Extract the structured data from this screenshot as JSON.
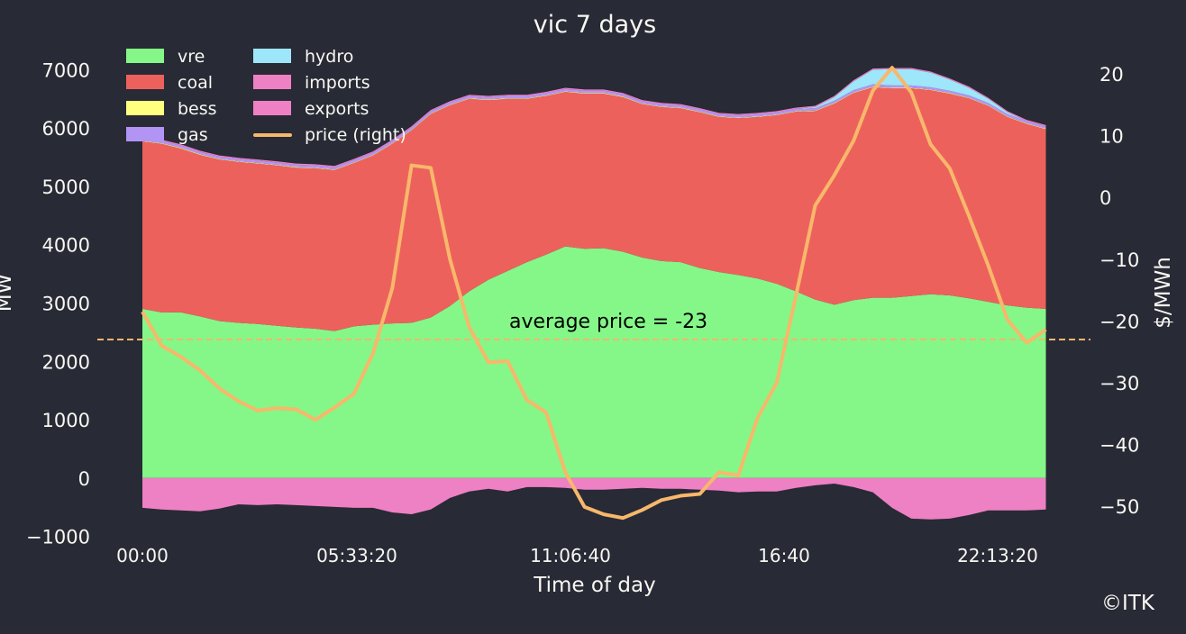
{
  "chart_data": {
    "type": "area",
    "title": "vic 7 days",
    "xlabel": "Time of day",
    "ylabel": "MW",
    "ylabel_right": "$/MWh",
    "x_step_minutes": 30,
    "x_ticks": [
      "00:00",
      "05:33:20",
      "11:06:40",
      "16:40",
      "22:13:20"
    ],
    "y_ticks": [
      "−1000",
      "0",
      "1000",
      "2000",
      "3000",
      "4000",
      "5000",
      "6000",
      "7000"
    ],
    "y_right_ticks": [
      "−50",
      "−40",
      "−30",
      "−20",
      "−10",
      "0",
      "10",
      "20"
    ],
    "ylim": [
      -1300,
      7500
    ],
    "ylim_right": [
      -57.7,
      25.4
    ],
    "grid": false,
    "legend_position": "top-left",
    "colors": {
      "background": "#282a36",
      "text": "#f8f8f2",
      "vre": "#84f788",
      "coal": "#ed615c",
      "bess": "#ffff80",
      "gas": "#b294f5",
      "hydro": "#9ee6fa",
      "imports": "#ee80c4",
      "exports": "#ee80c4",
      "price": "#f7b86b"
    },
    "series": [
      {
        "name": "vre",
        "values": [
          2900,
          2840,
          2840,
          2770,
          2690,
          2660,
          2640,
          2610,
          2580,
          2560,
          2520,
          2600,
          2630,
          2650,
          2660,
          2750,
          2950,
          3200,
          3400,
          3550,
          3700,
          3830,
          3970,
          3930,
          3940,
          3880,
          3780,
          3720,
          3700,
          3600,
          3530,
          3480,
          3420,
          3330,
          3200,
          3060,
          2970,
          3050,
          3090,
          3090,
          3120,
          3150,
          3130,
          3080,
          3020,
          2960,
          2920,
          2900
        ]
      },
      {
        "name": "coal",
        "values": [
          2870,
          2890,
          2810,
          2770,
          2770,
          2760,
          2750,
          2750,
          2740,
          2750,
          2760,
          2800,
          2900,
          3080,
          3300,
          3490,
          3440,
          3300,
          3080,
          2950,
          2800,
          2720,
          2650,
          2660,
          2650,
          2650,
          2630,
          2640,
          2640,
          2670,
          2660,
          2690,
          2770,
          2890,
          3080,
          3230,
          3450,
          3550,
          3610,
          3590,
          3560,
          3500,
          3460,
          3430,
          3360,
          3230,
          3150,
          3080
        ]
      },
      {
        "name": "bess",
        "values": [
          10,
          10,
          10,
          10,
          10,
          10,
          10,
          10,
          10,
          10,
          10,
          10,
          10,
          10,
          10,
          10,
          10,
          10,
          10,
          10,
          10,
          10,
          10,
          10,
          10,
          10,
          10,
          10,
          10,
          10,
          10,
          10,
          10,
          10,
          10,
          10,
          10,
          10,
          10,
          10,
          10,
          10,
          10,
          10,
          10,
          10,
          10,
          10
        ]
      },
      {
        "name": "gas",
        "values": [
          40,
          40,
          40,
          40,
          40,
          40,
          40,
          40,
          40,
          40,
          40,
          40,
          40,
          40,
          40,
          40,
          40,
          40,
          40,
          40,
          40,
          40,
          40,
          40,
          40,
          40,
          40,
          40,
          40,
          40,
          40,
          40,
          40,
          40,
          40,
          40,
          40,
          40,
          40,
          40,
          40,
          40,
          40,
          40,
          40,
          40,
          40,
          40
        ]
      },
      {
        "name": "hydro",
        "values": [
          0,
          0,
          0,
          0,
          0,
          0,
          0,
          0,
          0,
          0,
          0,
          0,
          0,
          0,
          0,
          0,
          0,
          0,
          0,
          0,
          0,
          0,
          0,
          0,
          0,
          0,
          0,
          0,
          0,
          0,
          0,
          0,
          0,
          0,
          0,
          20,
          60,
          150,
          250,
          280,
          280,
          250,
          190,
          130,
          70,
          30,
          0,
          0
        ]
      },
      {
        "name": "imports",
        "values": [
          20,
          20,
          20,
          20,
          20,
          20,
          20,
          20,
          20,
          20,
          20,
          20,
          20,
          20,
          20,
          20,
          20,
          20,
          20,
          20,
          20,
          20,
          20,
          20,
          20,
          20,
          20,
          20,
          20,
          20,
          20,
          20,
          20,
          20,
          20,
          20,
          20,
          20,
          20,
          20,
          20,
          20,
          20,
          20,
          20,
          20,
          20,
          20
        ]
      },
      {
        "name": "exports",
        "values": [
          -510,
          -540,
          -555,
          -570,
          -525,
          -450,
          -465,
          -450,
          -465,
          -480,
          -495,
          -510,
          -510,
          -590,
          -620,
          -540,
          -340,
          -230,
          -185,
          -230,
          -155,
          -155,
          -170,
          -200,
          -200,
          -185,
          -170,
          -185,
          -185,
          -200,
          -215,
          -245,
          -230,
          -230,
          -170,
          -125,
          -95,
          -155,
          -245,
          -510,
          -695,
          -710,
          -695,
          -635,
          -555,
          -555,
          -555,
          -540
        ]
      },
      {
        "name": "price (right)",
        "axis": "right",
        "values": [
          -18.5,
          -24,
          -25.8,
          -28,
          -30.9,
          -33,
          -34.5,
          -34.1,
          -34.3,
          -36,
          -34,
          -31.8,
          -25.2,
          -14.7,
          5.2,
          4.8,
          -10,
          -21,
          -26.7,
          -26.5,
          -32.8,
          -34.8,
          -44.5,
          -50.1,
          -51.3,
          -51.9,
          -50.6,
          -49,
          -48.3,
          -48,
          -44.5,
          -45,
          -35.7,
          -30,
          -15.9,
          -1.3,
          3.6,
          9.2,
          17.3,
          21,
          17,
          8.6,
          4.7,
          -3,
          -11,
          -19.8,
          -23.5,
          -21.4
        ]
      }
    ],
    "average_price": -23,
    "annotation": "average price = -23",
    "legend": [
      "vre",
      "coal",
      "bess",
      "gas",
      "hydro",
      "imports",
      "exports",
      "price (right)"
    ],
    "credit": "©ITK"
  }
}
